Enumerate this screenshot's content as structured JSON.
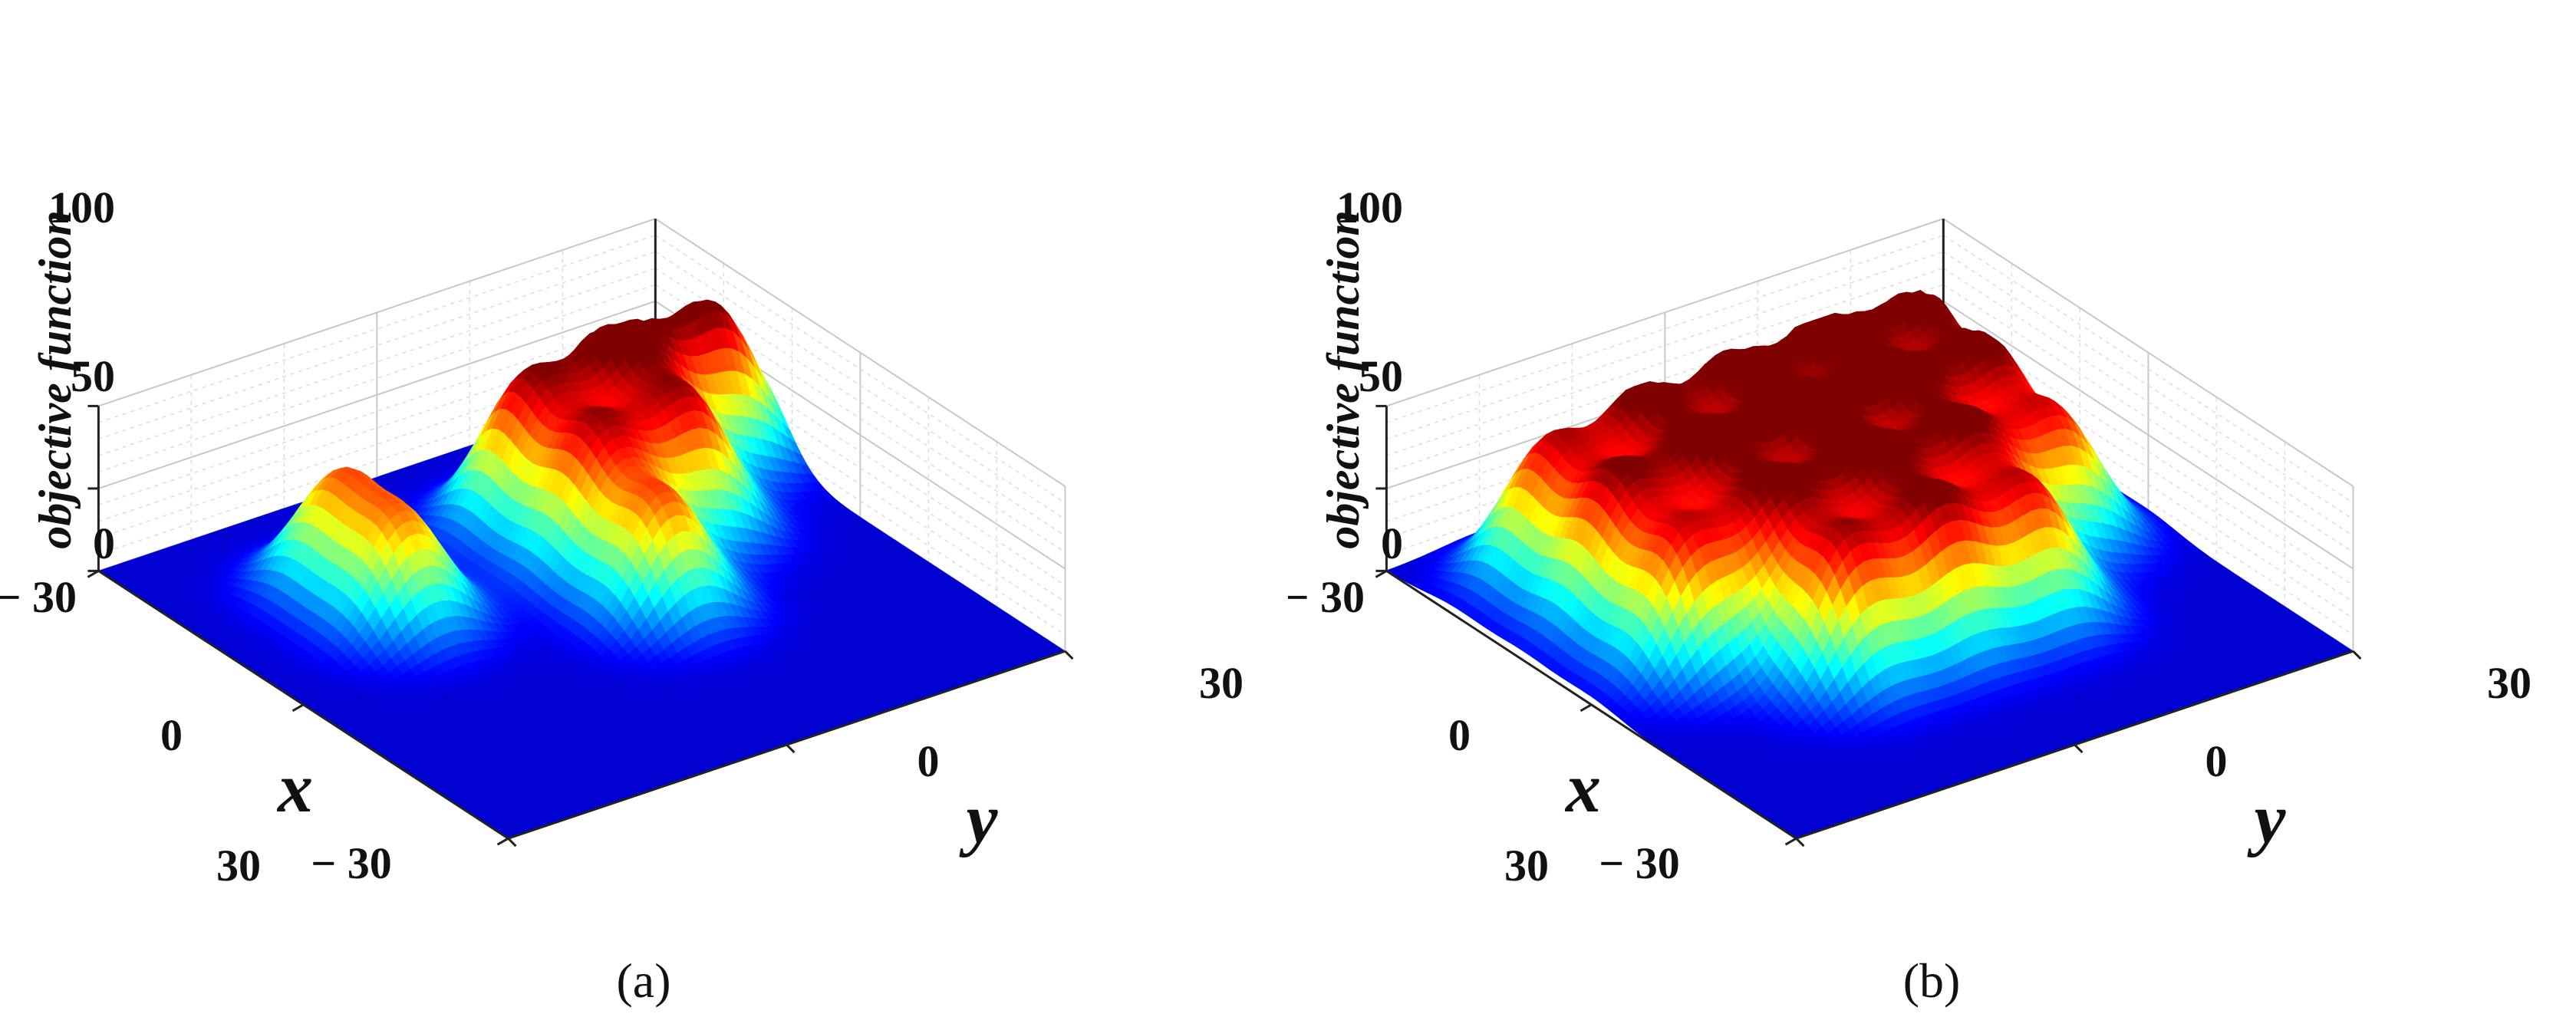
{
  "chart_data": [
    {
      "panel": "(a)",
      "type": "surface",
      "xlabel": "x",
      "ylabel": "y",
      "zlabel": "objective function",
      "xlim": [
        -30,
        30
      ],
      "ylim": [
        -30,
        30
      ],
      "zlim": [
        0,
        100
      ],
      "x_ticks": [
        "− 30",
        "0",
        "30"
      ],
      "y_ticks": [
        "− 30",
        "0",
        "30"
      ],
      "z_ticks": [
        "0",
        "50",
        "100"
      ],
      "colormap": "jet",
      "peak_width": 4.2,
      "peaks": [
        {
          "x": -15,
          "y": -15,
          "z": 68
        },
        {
          "x": -6,
          "y": -15,
          "z": 66
        },
        {
          "x": -15,
          "y": 5,
          "z": 85
        },
        {
          "x": -15,
          "y": 15,
          "z": 100
        },
        {
          "x": -15,
          "y": 25,
          "z": 95
        },
        {
          "x": -5,
          "y": 5,
          "z": 80
        },
        {
          "x": -5,
          "y": 15,
          "z": 82
        },
        {
          "x": 5,
          "y": 5,
          "z": 72
        }
      ]
    },
    {
      "panel": "(b)",
      "type": "surface",
      "xlabel": "x",
      "ylabel": "y",
      "zlabel": "objective function",
      "xlim": [
        -30,
        30
      ],
      "ylim": [
        -30,
        30
      ],
      "zlim": [
        0,
        100
      ],
      "x_ticks": [
        "− 30",
        "0",
        "30"
      ],
      "y_ticks": [
        "− 30",
        "0",
        "30"
      ],
      "z_ticks": [
        "0",
        "50",
        "100"
      ],
      "colormap": "jet",
      "peak_width": 4.2,
      "peaks": [
        {
          "x": -20,
          "y": -20,
          "z": 80
        },
        {
          "x": -20,
          "y": -10,
          "z": 88
        },
        {
          "x": -20,
          "y": 0,
          "z": 92
        },
        {
          "x": -20,
          "y": 10,
          "z": 98
        },
        {
          "x": -20,
          "y": 20,
          "z": 95
        },
        {
          "x": -10,
          "y": -20,
          "z": 84
        },
        {
          "x": -10,
          "y": -10,
          "z": 90
        },
        {
          "x": -10,
          "y": 0,
          "z": 100
        },
        {
          "x": -10,
          "y": 10,
          "z": 93
        },
        {
          "x": -10,
          "y": 20,
          "z": 88
        },
        {
          "x": 0,
          "y": -20,
          "z": 78
        },
        {
          "x": 0,
          "y": -10,
          "z": 86
        },
        {
          "x": 0,
          "y": 0,
          "z": 92
        },
        {
          "x": 0,
          "y": 10,
          "z": 84
        },
        {
          "x": 0,
          "y": 20,
          "z": 76
        },
        {
          "x": 10,
          "y": -10,
          "z": 82
        },
        {
          "x": 10,
          "y": 0,
          "z": 86
        },
        {
          "x": 10,
          "y": 10,
          "z": 78
        }
      ]
    }
  ]
}
